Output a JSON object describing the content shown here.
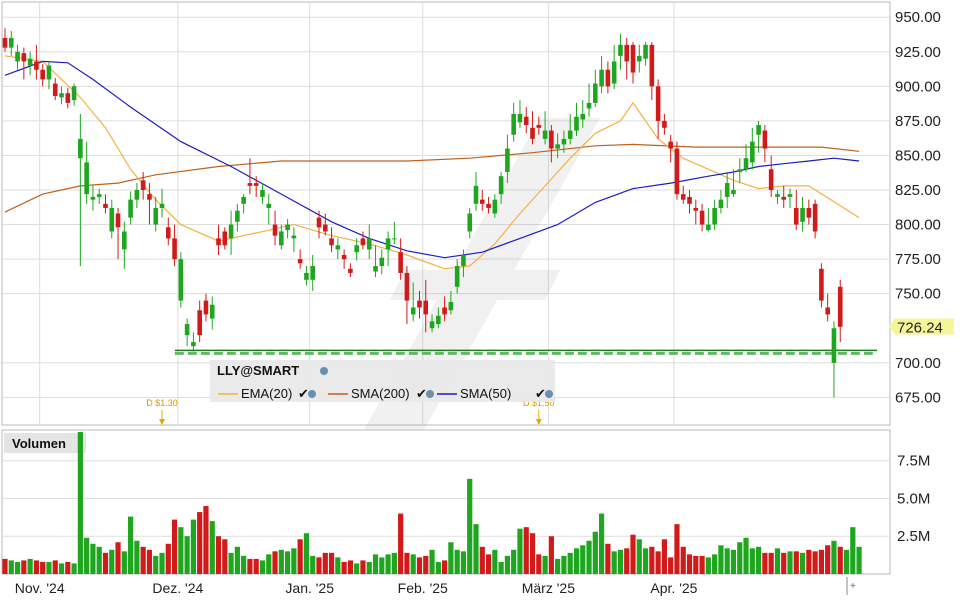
{
  "chart_data": {
    "type": "candlestick",
    "symbol": "LLY@SMART",
    "price_ticks": [
      "950.00",
      "925.00",
      "900.00",
      "875.00",
      "850.00",
      "825.00",
      "800.00",
      "775.00",
      "750.00",
      "726.24",
      "700.00",
      "675.00"
    ],
    "price_tick_values": [
      950,
      925,
      900,
      875,
      850,
      825,
      800,
      775,
      750,
      700,
      675
    ],
    "price_range": [
      655,
      961
    ],
    "last_price": 726.24,
    "last_price_label": "726.24",
    "support_level": 709,
    "month_labels": [
      "Nov. '24",
      "Dez. '24",
      "Jan. '25",
      "Feb. '25",
      "März '25",
      "Apr. '25"
    ],
    "month_start_index": [
      6,
      28,
      49,
      67,
      87,
      107
    ],
    "dividends": [
      {
        "label": "D $1.30",
        "index": 25
      },
      {
        "label": "D $1.50",
        "index": 85
      }
    ],
    "legend": [
      {
        "name": "EMA(20)",
        "color": "#f3b144"
      },
      {
        "name": "SMA(200)",
        "color": "#c0611a"
      },
      {
        "name": "SMA(50)",
        "color": "#1c1cc0"
      }
    ],
    "volume_panel_title": "Volumen",
    "volume_ticks": [
      "7.5M",
      "5.0M",
      "2.5M"
    ],
    "volume_tick_values": [
      7.5,
      5.0,
      2.5
    ],
    "volume_range": [
      0,
      9.4
    ],
    "candles": [
      [
        935,
        928,
        942,
        925
      ],
      [
        928,
        935,
        940,
        922
      ],
      [
        918,
        925,
        930,
        912
      ],
      [
        924,
        918,
        928,
        905
      ],
      [
        915,
        920,
        925,
        908
      ],
      [
        918,
        912,
        930,
        905
      ],
      [
        912,
        905,
        916,
        900
      ],
      [
        905,
        915,
        918,
        898
      ],
      [
        902,
        893,
        906,
        890
      ],
      [
        892,
        895,
        900,
        887
      ],
      [
        895,
        888,
        899,
        884
      ],
      [
        890,
        900,
        902,
        886
      ],
      [
        848,
        862,
        880,
        770
      ],
      [
        822,
        845,
        860,
        815
      ],
      [
        818,
        820,
        828,
        810
      ],
      [
        820,
        822,
        826,
        815
      ],
      [
        815,
        812,
        822,
        808
      ],
      [
        795,
        812,
        818,
        790
      ],
      [
        808,
        798,
        812,
        775
      ],
      [
        782,
        795,
        802,
        768
      ],
      [
        805,
        818,
        824,
        800
      ],
      [
        818,
        825,
        830,
        812
      ],
      [
        832,
        825,
        838,
        818
      ],
      [
        822,
        818,
        830,
        800
      ],
      [
        800,
        812,
        820,
        795
      ],
      [
        812,
        815,
        826,
        805
      ],
      [
        798,
        790,
        805,
        785
      ],
      [
        790,
        775,
        800,
        770
      ],
      [
        745,
        775,
        780,
        740
      ],
      [
        720,
        728,
        732,
        712
      ],
      [
        712,
        715,
        722,
        708
      ],
      [
        738,
        720,
        745,
        715
      ],
      [
        745,
        735,
        750,
        730
      ],
      [
        732,
        742,
        748,
        724
      ],
      [
        790,
        785,
        800,
        778
      ],
      [
        795,
        785,
        798,
        782
      ],
      [
        790,
        800,
        810,
        778
      ],
      [
        802,
        810,
        815,
        795
      ],
      [
        815,
        820,
        822,
        808
      ],
      [
        830,
        828,
        848,
        822
      ],
      [
        830,
        828,
        835,
        820
      ],
      [
        820,
        825,
        830,
        815
      ],
      [
        812,
        815,
        822,
        800
      ],
      [
        800,
        792,
        810,
        785
      ],
      [
        785,
        795,
        800,
        782
      ],
      [
        796,
        800,
        804,
        790
      ],
      [
        790,
        792,
        798,
        780
      ],
      [
        775,
        772,
        782,
        768
      ],
      [
        760,
        765,
        770,
        756
      ],
      [
        760,
        770,
        778,
        752
      ],
      [
        805,
        798,
        810,
        790
      ],
      [
        800,
        795,
        808,
        792
      ],
      [
        790,
        785,
        798,
        780
      ],
      [
        782,
        785,
        790,
        775
      ],
      [
        778,
        775,
        782,
        768
      ],
      [
        768,
        765,
        772,
        762
      ],
      [
        780,
        785,
        790,
        774
      ],
      [
        790,
        785,
        795,
        782
      ],
      [
        782,
        790,
        800,
        775
      ],
      [
        766,
        770,
        785,
        762
      ],
      [
        770,
        776,
        782,
        764
      ],
      [
        782,
        790,
        795,
        770
      ],
      [
        790,
        790,
        802,
        786
      ],
      [
        780,
        765,
        790,
        760
      ],
      [
        765,
        745,
        770,
        728
      ],
      [
        735,
        740,
        758,
        730
      ],
      [
        745,
        740,
        752,
        732
      ],
      [
        745,
        735,
        760,
        722
      ],
      [
        725,
        730,
        735,
        722
      ],
      [
        728,
        734,
        740,
        725
      ],
      [
        740,
        735,
        748,
        730
      ],
      [
        738,
        744,
        752,
        735
      ],
      [
        755,
        770,
        775,
        750
      ],
      [
        770,
        778,
        782,
        762
      ],
      [
        795,
        808,
        812,
        790
      ],
      [
        815,
        828,
        838,
        810
      ],
      [
        818,
        815,
        825,
        810
      ],
      [
        815,
        812,
        820,
        808
      ],
      [
        808,
        818,
        822,
        805
      ],
      [
        822,
        835,
        838,
        815
      ],
      [
        838,
        855,
        865,
        830
      ],
      [
        865,
        880,
        888,
        860
      ],
      [
        874,
        880,
        890,
        870
      ],
      [
        878,
        872,
        885,
        866
      ],
      [
        870,
        862,
        882,
        858
      ],
      [
        872,
        870,
        878,
        865
      ],
      [
        862,
        868,
        882,
        858
      ],
      [
        868,
        855,
        872,
        845
      ],
      [
        855,
        858,
        866,
        848
      ],
      [
        858,
        862,
        868,
        852
      ],
      [
        862,
        868,
        880,
        858
      ],
      [
        868,
        878,
        888,
        864
      ],
      [
        876,
        880,
        890,
        870
      ],
      [
        884,
        888,
        902,
        878
      ],
      [
        888,
        902,
        912,
        885
      ],
      [
        900,
        912,
        922,
        895
      ],
      [
        912,
        900,
        918,
        895
      ],
      [
        902,
        918,
        930,
        898
      ],
      [
        922,
        930,
        938,
        912
      ],
      [
        930,
        918,
        935,
        905
      ],
      [
        930,
        910,
        932,
        902
      ],
      [
        918,
        922,
        930,
        910
      ],
      [
        920,
        930,
        932,
        915
      ],
      [
        930,
        900,
        932,
        890
      ],
      [
        900,
        875,
        905,
        862
      ],
      [
        875,
        870,
        880,
        865
      ],
      [
        860,
        855,
        865,
        845
      ],
      [
        855,
        822,
        860,
        818
      ],
      [
        822,
        818,
        828,
        815
      ],
      [
        820,
        815,
        825,
        808
      ],
      [
        812,
        810,
        818,
        800
      ],
      [
        810,
        800,
        815,
        795
      ],
      [
        796,
        800,
        812,
        795
      ],
      [
        800,
        812,
        818,
        796
      ],
      [
        812,
        818,
        825,
        808
      ],
      [
        820,
        830,
        838,
        812
      ],
      [
        822,
        825,
        840,
        820
      ],
      [
        838,
        840,
        848,
        830
      ],
      [
        840,
        848,
        858,
        838
      ],
      [
        845,
        860,
        870,
        840
      ],
      [
        865,
        872,
        875,
        852
      ],
      [
        868,
        855,
        872,
        845
      ],
      [
        840,
        825,
        850,
        820
      ],
      [
        820,
        822,
        825,
        815
      ],
      [
        820,
        818,
        828,
        812
      ],
      [
        820,
        822,
        826,
        812
      ],
      [
        812,
        800,
        825,
        796
      ],
      [
        802,
        812,
        820,
        795
      ],
      [
        812,
        805,
        818,
        800
      ],
      [
        815,
        795,
        818,
        790
      ],
      [
        768,
        745,
        772,
        740
      ],
      [
        740,
        735,
        750,
        730
      ],
      [
        700,
        725,
        730,
        675
      ],
      [
        755,
        726,
        760,
        715
      ]
    ],
    "volumes": [
      1.0,
      0.9,
      0.8,
      0.9,
      1.0,
      0.9,
      0.8,
      0.8,
      0.9,
      0.7,
      0.8,
      0.7,
      9.4,
      2.4,
      2.0,
      1.8,
      1.4,
      1.6,
      2.1,
      1.5,
      3.8,
      2.2,
      1.8,
      1.6,
      1.2,
      1.4,
      2.0,
      3.6,
      3.1,
      2.5,
      3.6,
      4.1,
      4.5,
      3.5,
      2.5,
      2.3,
      1.4,
      1.8,
      1.2,
      1.0,
      1.0,
      0.9,
      1.3,
      1.5,
      1.6,
      1.5,
      1.7,
      2.3,
      2.7,
      1.2,
      1.1,
      1.4,
      1.4,
      1.1,
      0.8,
      0.9,
      0.7,
      0.9,
      0.8,
      1.3,
      1.1,
      1.3,
      1.4,
      4.0,
      1.4,
      1.3,
      1.1,
      1.2,
      1.6,
      0.8,
      0.9,
      2.1,
      1.6,
      1.5,
      6.3,
      3.3,
      1.8,
      1.3,
      1.6,
      0.8,
      1.2,
      1.6,
      3.0,
      3.1,
      2.7,
      1.3,
      1.2,
      2.5,
      1.0,
      1.2,
      1.4,
      1.7,
      1.9,
      2.2,
      2.8,
      4.0,
      2.0,
      1.5,
      1.6,
      1.7,
      2.6,
      2.3,
      1.7,
      1.8,
      1.5,
      2.3,
      1.1,
      3.3,
      1.8,
      1.3,
      1.2,
      1.2,
      1.1,
      1.3,
      1.9,
      1.7,
      1.6,
      2.1,
      2.4,
      1.7,
      1.8,
      1.4,
      1.4,
      1.7,
      1.4,
      1.5,
      1.5,
      1.4,
      1.6,
      1.5,
      1.6,
      1.9,
      2.2,
      1.8,
      1.6,
      3.1,
      1.8
    ],
    "ema20": [
      [
        0,
        922
      ],
      [
        6,
        918
      ],
      [
        12,
        892
      ],
      [
        16,
        870
      ],
      [
        20,
        840
      ],
      [
        24,
        818
      ],
      [
        28,
        800
      ],
      [
        34,
        788
      ],
      [
        40,
        794
      ],
      [
        46,
        800
      ],
      [
        52,
        792
      ],
      [
        58,
        786
      ],
      [
        64,
        778
      ],
      [
        70,
        768
      ],
      [
        74,
        770
      ],
      [
        78,
        786
      ],
      [
        82,
        808
      ],
      [
        86,
        828
      ],
      [
        90,
        848
      ],
      [
        94,
        866
      ],
      [
        98,
        875
      ],
      [
        100,
        888
      ],
      [
        104,
        862
      ],
      [
        108,
        848
      ],
      [
        112,
        840
      ],
      [
        116,
        832
      ],
      [
        120,
        826
      ],
      [
        124,
        828
      ],
      [
        128,
        828
      ],
      [
        136,
        805
      ]
    ],
    "sma200": [
      [
        0,
        809
      ],
      [
        6,
        822
      ],
      [
        12,
        828
      ],
      [
        18,
        830
      ],
      [
        24,
        836
      ],
      [
        34,
        842
      ],
      [
        44,
        846
      ],
      [
        54,
        846
      ],
      [
        64,
        846
      ],
      [
        74,
        848
      ],
      [
        84,
        852
      ],
      [
        94,
        857
      ],
      [
        100,
        858
      ],
      [
        110,
        856
      ],
      [
        120,
        856
      ],
      [
        130,
        856
      ],
      [
        136,
        853
      ]
    ],
    "sma50": [
      [
        0,
        908
      ],
      [
        6,
        918
      ],
      [
        10,
        917
      ],
      [
        14,
        905
      ],
      [
        20,
        885
      ],
      [
        28,
        860
      ],
      [
        36,
        842
      ],
      [
        44,
        822
      ],
      [
        52,
        802
      ],
      [
        58,
        790
      ],
      [
        64,
        781
      ],
      [
        70,
        776
      ],
      [
        76,
        780
      ],
      [
        82,
        790
      ],
      [
        88,
        800
      ],
      [
        94,
        816
      ],
      [
        100,
        826
      ],
      [
        106,
        830
      ],
      [
        112,
        835
      ],
      [
        116,
        838
      ],
      [
        120,
        842
      ],
      [
        124,
        844
      ],
      [
        128,
        846
      ],
      [
        132,
        848
      ],
      [
        136,
        846
      ]
    ]
  }
}
